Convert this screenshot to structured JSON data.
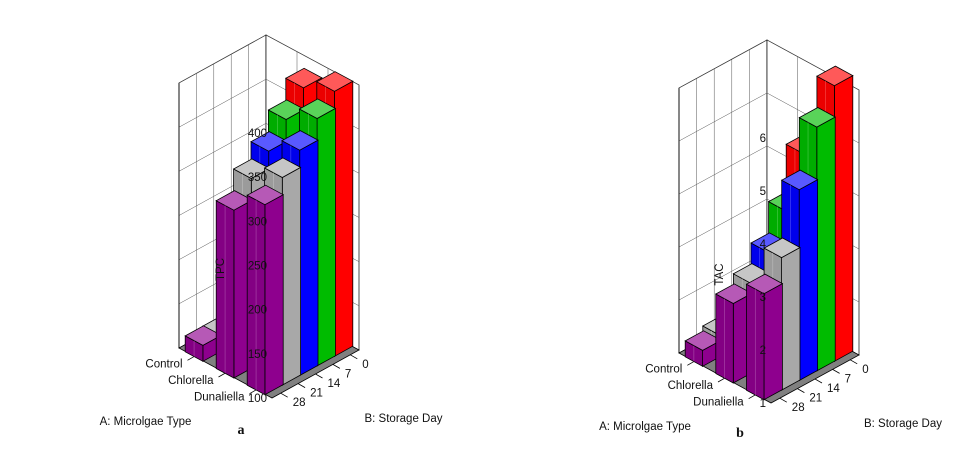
{
  "chart_data": [
    {
      "type": "bar3d",
      "subfigure_label": "a",
      "zlabel": "TPC",
      "xlabel": "A: Microlgae Type",
      "ylabel": "B: Storage Day",
      "x_categories": [
        "Dunaliella",
        "Chlorella",
        "Control"
      ],
      "y_categories": [
        "0",
        "7",
        "14",
        "21",
        "28"
      ],
      "zticks": [
        100,
        150,
        200,
        250,
        300,
        350,
        400
      ],
      "zlim": [
        100,
        400
      ],
      "colors": {
        "0": "#ff0000",
        "7": "#00bb00",
        "14": "#0000ff",
        "21": "#a8a8a8",
        "28": "#8e008e"
      },
      "values": [
        [
          400,
          380,
          355,
          335,
          315
        ],
        [
          385,
          360,
          335,
          315,
          290
        ],
        [
          175,
          165,
          135,
          115,
          110
        ]
      ]
    },
    {
      "type": "bar3d",
      "subfigure_label": "b",
      "zlabel": "TAC",
      "xlabel": "A: Microlgae Type",
      "ylabel": "B: Storage Day",
      "x_categories": [
        "Dunaliella",
        "Chlorella",
        "Control"
      ],
      "y_categories": [
        "0",
        "7",
        "14",
        "21",
        "28"
      ],
      "zticks": [
        1,
        2,
        3,
        4,
        5,
        6
      ],
      "zlim": [
        1,
        6
      ],
      "colors": {
        "0": "#ff0000",
        "7": "#00bb00",
        "14": "#0000ff",
        "21": "#a8a8a8",
        "28": "#8e008e"
      },
      "values": [
        [
          6.2,
          5.6,
          4.6,
          3.5,
          3.0
        ],
        [
          4.6,
          3.7,
          3.1,
          2.7,
          2.5
        ],
        [
          2.3,
          2.0,
          1.8,
          1.4,
          1.2
        ]
      ]
    }
  ]
}
